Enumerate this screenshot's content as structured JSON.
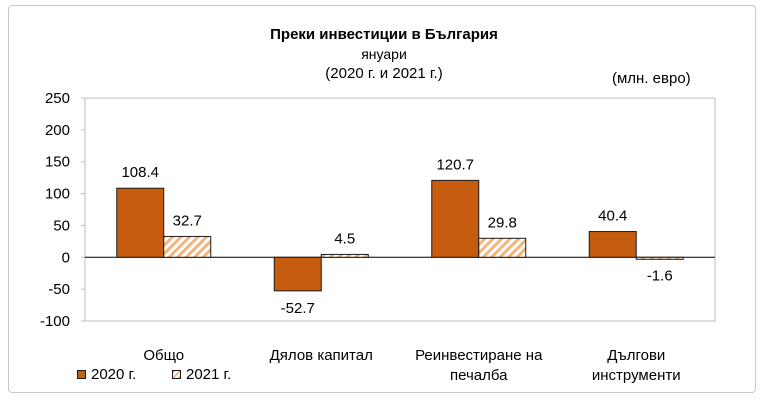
{
  "chart_data": {
    "type": "bar",
    "title": "Преки  инвестиции в България",
    "subtitle": "януари",
    "period": "(2020 г. и 2021 г.)",
    "unit": "(млн. евро)",
    "categories": [
      [
        "Общо"
      ],
      [
        "Дялов капитал"
      ],
      [
        "Реинвестиране на",
        "печалба"
      ],
      [
        "Дългови",
        "инструменти"
      ]
    ],
    "series": [
      {
        "name": "2020 г.",
        "values": [
          108.4,
          -52.7,
          120.7,
          40.4
        ],
        "labels": [
          "108.4",
          "-52.7",
          "120.7",
          "40.4"
        ],
        "color": "#c65c10"
      },
      {
        "name": "2021 г.",
        "values": [
          32.7,
          4.5,
          29.8,
          -1.6
        ],
        "labels": [
          "32.7",
          "4.5",
          "29.8",
          "-1.6"
        ],
        "color": "#f6b37a"
      }
    ],
    "ylim": [
      -100,
      250
    ],
    "yticks": [
      -100,
      -50,
      0,
      50,
      100,
      150,
      200,
      250
    ],
    "grid": false,
    "legend": "bottom-left"
  }
}
